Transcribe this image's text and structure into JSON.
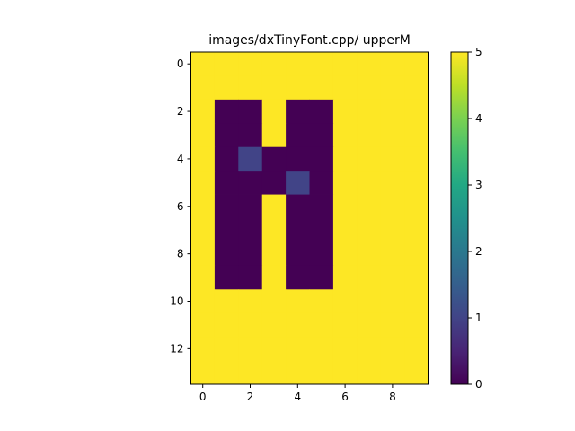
{
  "chart_data": {
    "type": "heatmap",
    "title": "images/dxTinyFont.cpp/ upperM",
    "xlabel": "",
    "ylabel": "",
    "n_rows": 14,
    "n_cols": 10,
    "x_ticks": [
      0,
      2,
      4,
      6,
      8
    ],
    "y_ticks": [
      0,
      2,
      4,
      6,
      8,
      10,
      12
    ],
    "colorbar": {
      "min": 0,
      "max": 5,
      "ticks": [
        0,
        1,
        2,
        3,
        4,
        5
      ],
      "colormap": "viridis"
    },
    "values": [
      [
        5,
        5,
        5,
        5,
        5,
        5,
        5,
        5,
        5,
        5
      ],
      [
        5,
        5,
        5,
        5,
        5,
        5,
        5,
        5,
        5,
        5
      ],
      [
        5,
        0,
        0,
        5,
        0,
        0,
        5,
        5,
        5,
        5
      ],
      [
        5,
        0,
        0,
        5,
        0,
        0,
        5,
        5,
        5,
        5
      ],
      [
        5,
        0,
        1,
        0,
        0,
        0,
        5,
        5,
        5,
        5
      ],
      [
        5,
        0,
        0,
        0,
        1,
        0,
        5,
        5,
        5,
        5
      ],
      [
        5,
        0,
        0,
        5,
        0,
        0,
        5,
        5,
        5,
        5
      ],
      [
        5,
        0,
        0,
        5,
        0,
        0,
        5,
        5,
        5,
        5
      ],
      [
        5,
        0,
        0,
        5,
        0,
        0,
        5,
        5,
        5,
        5
      ],
      [
        5,
        0,
        0,
        5,
        0,
        0,
        5,
        5,
        5,
        5
      ],
      [
        5,
        5,
        5,
        5,
        5,
        5,
        5,
        5,
        5,
        5
      ],
      [
        5,
        5,
        5,
        5,
        5,
        5,
        5,
        5,
        5,
        5
      ],
      [
        5,
        5,
        5,
        5,
        5,
        5,
        5,
        5,
        5,
        5
      ],
      [
        5,
        5,
        5,
        5,
        5,
        5,
        5,
        5,
        5,
        5
      ]
    ]
  }
}
